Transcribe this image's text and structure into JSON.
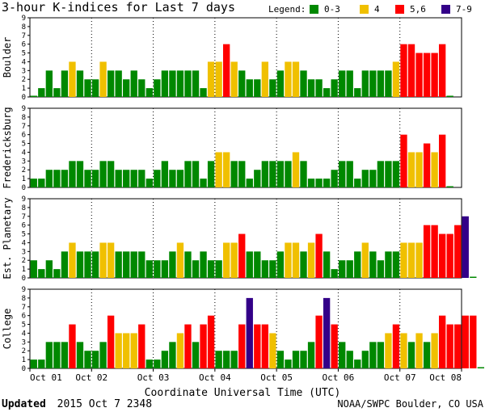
{
  "chart_data": {
    "type": "bar",
    "title": "3-hour K-indices for Last 7 days",
    "legend": {
      "label": "Legend:",
      "items": [
        {
          "label": "0-3",
          "color": "#008800"
        },
        {
          "label": "4",
          "color": "#f0c000"
        },
        {
          "label": "5,6",
          "color": "#ff0000"
        },
        {
          "label": "7-9",
          "color": "#330088"
        }
      ]
    },
    "xlabel": "Coordinate Universal Time (UTC)",
    "x_ticks": [
      "Oct 01",
      "Oct 02",
      "Oct 03",
      "Oct 04",
      "Oct 05",
      "Oct 06",
      "Oct 07",
      "Oct 08"
    ],
    "y_ticks": [
      "0",
      "1",
      "2",
      "3",
      "4",
      "5",
      "6",
      "7",
      "8",
      "9"
    ],
    "ylim": [
      0,
      9
    ],
    "panels": [
      {
        "name": "Boulder",
        "values": [
          0,
          1,
          3,
          1,
          3,
          4,
          3,
          2,
          2,
          4,
          3,
          3,
          2,
          3,
          2,
          1,
          2,
          3,
          3,
          3,
          3,
          3,
          1,
          4,
          4,
          6,
          4,
          3,
          2,
          2,
          4,
          2,
          3,
          4,
          4,
          3,
          2,
          2,
          1,
          2,
          3,
          3,
          1,
          3,
          3,
          3,
          3,
          4,
          6,
          6,
          5,
          5,
          5,
          6,
          0
        ]
      },
      {
        "name": "Fredericksburg",
        "values": [
          1,
          1,
          2,
          2,
          2,
          3,
          3,
          2,
          2,
          3,
          3,
          2,
          2,
          2,
          2,
          1,
          2,
          3,
          2,
          2,
          3,
          3,
          1,
          3,
          4,
          4,
          3,
          3,
          1,
          2,
          3,
          3,
          3,
          3,
          4,
          3,
          1,
          1,
          1,
          2,
          3,
          3,
          1,
          2,
          2,
          3,
          3,
          3,
          6,
          4,
          4,
          5,
          4,
          6,
          0
        ]
      },
      {
        "name": "Est. Planetary",
        "values": [
          2,
          1,
          2,
          1,
          3,
          4,
          3,
          3,
          3,
          4,
          4,
          3,
          3,
          3,
          3,
          2,
          2,
          2,
          3,
          4,
          3,
          2,
          3,
          2,
          2,
          4,
          4,
          5,
          3,
          3,
          2,
          2,
          3,
          4,
          4,
          3,
          4,
          5,
          3,
          1,
          2,
          2,
          3,
          4,
          3,
          2,
          3,
          3,
          4,
          4,
          4,
          6,
          6,
          5,
          5,
          6,
          7,
          0
        ]
      },
      {
        "name": "College",
        "values": [
          1,
          1,
          3,
          3,
          3,
          5,
          3,
          2,
          2,
          3,
          6,
          4,
          4,
          4,
          5,
          1,
          1,
          2,
          3,
          4,
          5,
          3,
          5,
          6,
          2,
          2,
          2,
          5,
          8,
          5,
          5,
          4,
          2,
          1,
          2,
          2,
          3,
          6,
          8,
          5,
          3,
          2,
          1,
          2,
          3,
          3,
          4,
          5,
          4,
          3,
          4,
          3,
          4,
          6,
          5,
          5,
          6,
          6,
          0
        ]
      }
    ]
  },
  "footer": {
    "updated_label": "Updated",
    "updated_value": "2015 Oct  7 2348",
    "source": "NOAA/SWPC Boulder, CO USA"
  }
}
